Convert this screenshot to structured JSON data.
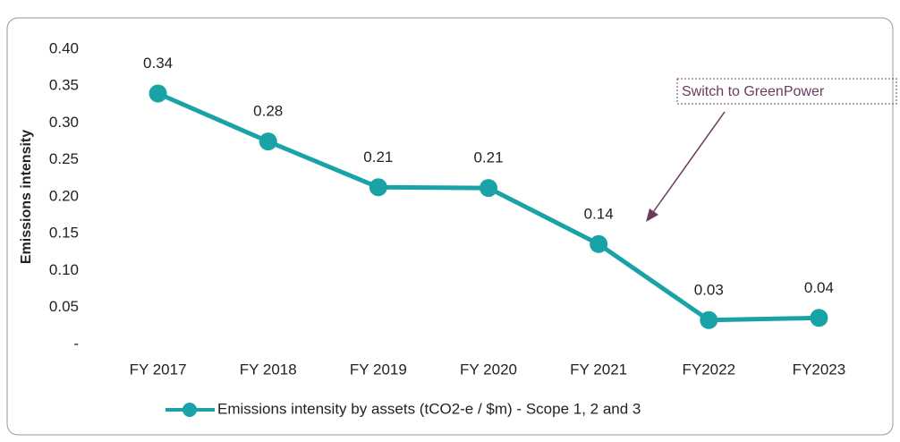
{
  "chart_data": {
    "type": "line",
    "y_label": "Emissions intensity",
    "categories": [
      "FY 2017",
      "FY 2018",
      "FY 2019",
      "FY 2020",
      "FY 2021",
      "FY2022",
      "FY2023"
    ],
    "series": [
      {
        "name": "Emissions intensity by assets (tCO2-e / $m) - Scope 1, 2 and 3",
        "color": "#1aa3a6",
        "values": [
          0.34,
          0.275,
          0.213,
          0.212,
          0.136,
          0.033,
          0.036
        ],
        "value_labels": [
          "0.34",
          "0.28",
          "0.21",
          "0.21",
          "0.14",
          "0.03",
          "0.04"
        ]
      }
    ],
    "ylim": [
      0,
      0.4
    ],
    "yticks": [
      {
        "value": 0,
        "label": "-"
      },
      {
        "value": 0.05,
        "label": "0.05"
      },
      {
        "value": 0.1,
        "label": "0.10"
      },
      {
        "value": 0.15,
        "label": "0.15"
      },
      {
        "value": 0.2,
        "label": "0.20"
      },
      {
        "value": 0.25,
        "label": "0.25"
      },
      {
        "value": 0.3,
        "label": "0.30"
      },
      {
        "value": 0.35,
        "label": "0.35"
      },
      {
        "value": 0.4,
        "label": "0.40"
      }
    ],
    "annotation": "Switch to GreenPower",
    "legend": "bottom"
  }
}
